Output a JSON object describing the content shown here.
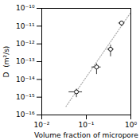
{
  "chart_data": {
    "type": "scatter",
    "xlabel": "Volume fraction of micropore",
    "ylabel": "D  (m²/s)",
    "log": true,
    "grid": false,
    "xlim": [
      0.01,
      1.0
    ],
    "ylim": [
      1e-16,
      1e-10
    ],
    "xticks": [
      {
        "value": 0.01,
        "label": "10⁻²"
      },
      {
        "value": 0.1,
        "label": "10⁻¹"
      },
      {
        "value": 1,
        "label": "10⁰"
      }
    ],
    "yticks": [
      {
        "value": 1e-16,
        "label": "10⁻¹⁶"
      },
      {
        "value": 1e-15,
        "label": "10⁻¹⁵"
      },
      {
        "value": 1e-14,
        "label": "10⁻¹⁴"
      },
      {
        "value": 1e-13,
        "label": "10⁻¹³"
      },
      {
        "value": 1e-12,
        "label": "10⁻¹²"
      },
      {
        "value": 1e-11,
        "label": "10⁻¹¹"
      },
      {
        "value": 1e-10,
        "label": "10⁻¹⁰"
      }
    ],
    "series": [
      {
        "type": "line",
        "x": [
          0.035,
          1.0
        ],
        "values": [
          3e-16,
          6e-11
        ],
        "color": "#aaaaaa",
        "line_style": "dotted"
      },
      {
        "type": "scatter",
        "x": [
          0.06,
          0.17,
          0.35,
          0.62
        ],
        "values": [
          2e-15,
          5e-14,
          5e-13,
          1.5e-11
        ],
        "xerr_low": [
          0.02,
          0.04,
          0.06,
          0.1
        ],
        "xerr_high": [
          0.02,
          0.04,
          0.06,
          0.1
        ],
        "yerr_low": [
          1e-15,
          3e-14,
          3e-13,
          5e-12
        ],
        "yerr_high": [
          1e-15,
          3e-14,
          4e-13,
          5e-12
        ],
        "color": "black",
        "marker": "open circle"
      }
    ]
  }
}
